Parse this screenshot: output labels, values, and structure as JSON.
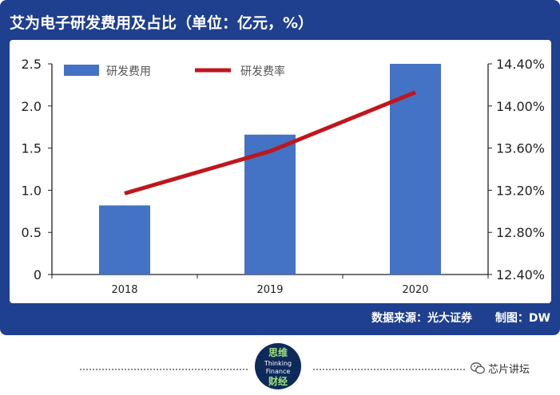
{
  "title": "艾为电子研发费用及占比（单位：亿元，%）",
  "source": "数据来源：光大证券",
  "author": "制图：DW",
  "logo_text": {
    "top": "思维",
    "mid1": "Thinking",
    "mid2": "Finance",
    "bottom": "财经"
  },
  "wechat_name": "芯片讲坛",
  "colors": {
    "panel": "#1f3f8f",
    "bar": "#4472c4",
    "line": "#c0161c"
  },
  "chart_data": {
    "type": "bar",
    "categories": [
      "2018",
      "2019",
      "2020"
    ],
    "series": [
      {
        "name": "研发费用",
        "type": "bar",
        "axis": "left",
        "values": [
          0.82,
          1.66,
          2.5
        ]
      },
      {
        "name": "研发费率",
        "type": "line",
        "axis": "right",
        "values": [
          13.17,
          13.57,
          14.13
        ]
      }
    ],
    "ylim": [
      0,
      2.5
    ],
    "yticks": [
      "0",
      "0.5",
      "1.0",
      "1.5",
      "2.0",
      "2.5"
    ],
    "y2lim": [
      12.4,
      14.4
    ],
    "y2ticks": [
      "12.40%",
      "12.80%",
      "13.20%",
      "13.60%",
      "14.00%",
      "14.40%"
    ],
    "legend_position": "top-left"
  }
}
